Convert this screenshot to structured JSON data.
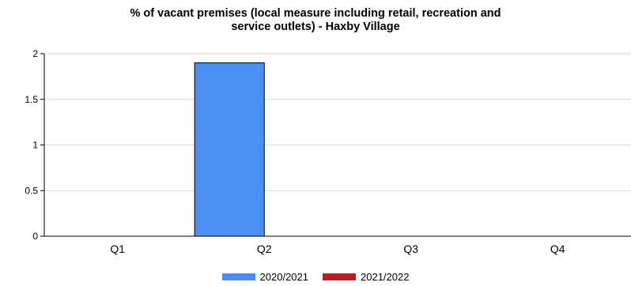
{
  "chart_data": {
    "type": "bar",
    "title": [
      "% of vacant premises (local measure including retail, recreation and",
      "service outlets) - Haxby Village"
    ],
    "categories": [
      "Q1",
      "Q2",
      "Q3",
      "Q4"
    ],
    "series": [
      {
        "name": "2020/2021",
        "color": "#4b8ff0",
        "values": [
          null,
          1.9,
          null,
          null
        ]
      },
      {
        "name": "2021/2022",
        "color": "#b22222",
        "values": [
          null,
          null,
          null,
          null
        ]
      }
    ],
    "ylim": [
      0,
      2
    ],
    "yticks": [
      0,
      0.5,
      1,
      1.5,
      2
    ],
    "ytick_labels": [
      "0",
      "0.5",
      "1",
      "1.5",
      "2"
    ],
    "grid": true,
    "legend_position": "bottom"
  }
}
